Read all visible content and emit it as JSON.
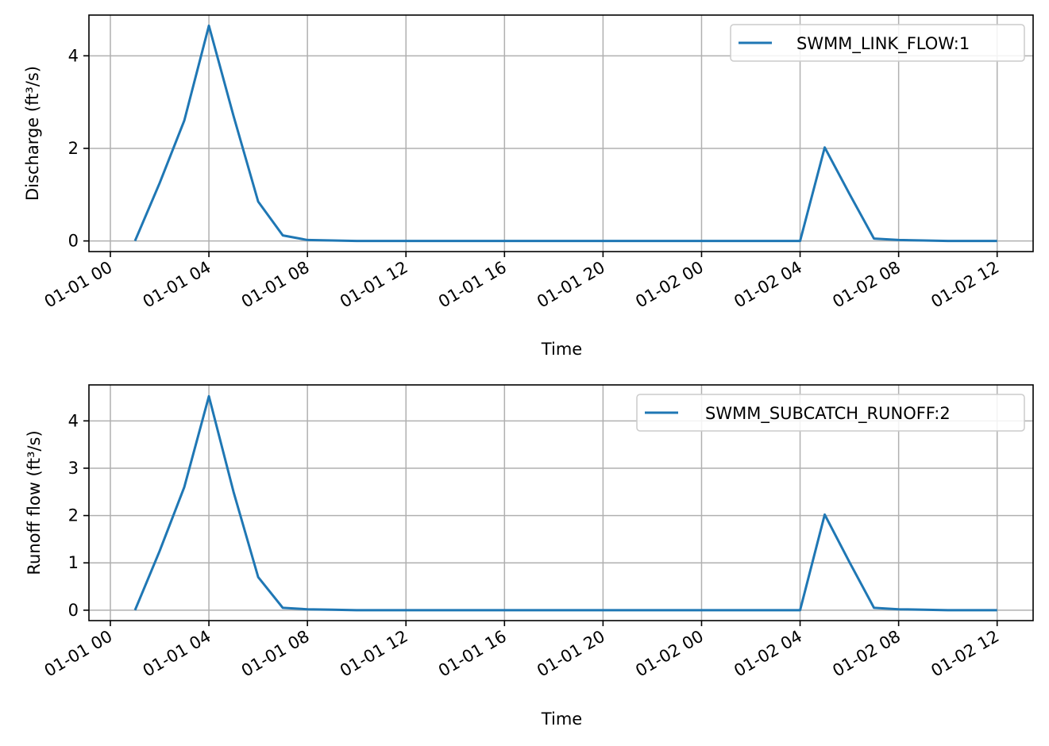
{
  "colors": {
    "series": "#1f77b4",
    "grid": "#b0b0b0",
    "axes": "#000000",
    "legend_border": "#cccccc",
    "background": "#ffffff"
  },
  "chart_data": [
    {
      "type": "line",
      "xlabel": "Time",
      "ylabel": "Discharge (ft³/s)",
      "x_axis": {
        "range_hours": [
          -0.87,
          37.46
        ],
        "ticks": [
          "01-01 00",
          "01-01 04",
          "01-01 08",
          "01-01 12",
          "01-01 16",
          "01-01 20",
          "01-02 00",
          "01-02 04",
          "01-02 08",
          "01-02 12"
        ],
        "tick_hours": [
          0,
          4,
          8,
          12,
          16,
          20,
          24,
          28,
          32,
          36
        ]
      },
      "ylim": [
        -0.23,
        4.88
      ],
      "yticks": [
        0,
        2,
        4
      ],
      "grid": true,
      "legend_position": "upper right",
      "x": [
        "01-01 01",
        "01-01 02",
        "01-01 03",
        "01-01 04",
        "01-01 05",
        "01-01 06",
        "01-01 07",
        "01-01 08",
        "01-01 09",
        "01-01 10",
        "01-01 11",
        "01-01 12",
        "01-01 13",
        "01-01 14",
        "01-01 15",
        "01-01 16",
        "01-01 17",
        "01-01 18",
        "01-01 19",
        "01-01 20",
        "01-01 21",
        "01-01 22",
        "01-01 23",
        "01-02 00",
        "01-02 01",
        "01-02 02",
        "01-02 03",
        "01-02 04",
        "01-02 05",
        "01-02 06",
        "01-02 07",
        "01-02 08",
        "01-02 09",
        "01-02 10",
        "01-02 11",
        "01-02 12"
      ],
      "series": [
        {
          "name": "SWMM_LINK_FLOW:1",
          "values": [
            0,
            1.25,
            2.6,
            4.65,
            2.7,
            0.85,
            0.12,
            0.02,
            0.01,
            0,
            0,
            0,
            0,
            0,
            0,
            0,
            0,
            0,
            0,
            0,
            0,
            0,
            0,
            0,
            0,
            0,
            0,
            0,
            2.02,
            1.02,
            0.05,
            0.02,
            0.01,
            0,
            0,
            0
          ]
        }
      ]
    },
    {
      "type": "line",
      "xlabel": "Time",
      "ylabel": "Runoff flow (ft³/s)",
      "x_axis": {
        "range_hours": [
          -0.87,
          37.46
        ],
        "ticks": [
          "01-01 00",
          "01-01 04",
          "01-01 08",
          "01-01 12",
          "01-01 16",
          "01-01 20",
          "01-02 00",
          "01-02 04",
          "01-02 08",
          "01-02 12"
        ],
        "tick_hours": [
          0,
          4,
          8,
          12,
          16,
          20,
          24,
          28,
          32,
          36
        ]
      },
      "ylim": [
        -0.22,
        4.76
      ],
      "yticks": [
        0,
        1,
        2,
        3,
        4
      ],
      "grid": true,
      "legend_position": "upper right",
      "x": [
        "01-01 01",
        "01-01 02",
        "01-01 03",
        "01-01 04",
        "01-01 05",
        "01-01 06",
        "01-01 07",
        "01-01 08",
        "01-01 09",
        "01-01 10",
        "01-01 11",
        "01-01 12",
        "01-01 13",
        "01-01 14",
        "01-01 15",
        "01-01 16",
        "01-01 17",
        "01-01 18",
        "01-01 19",
        "01-01 20",
        "01-01 21",
        "01-01 22",
        "01-01 23",
        "01-02 00",
        "01-02 01",
        "01-02 02",
        "01-02 03",
        "01-02 04",
        "01-02 05",
        "01-02 06",
        "01-02 07",
        "01-02 08",
        "01-02 09",
        "01-02 10",
        "01-02 11",
        "01-02 12"
      ],
      "series": [
        {
          "name": "SWMM_SUBCATCH_RUNOFF:2",
          "values": [
            0,
            1.25,
            2.6,
            4.52,
            2.5,
            0.7,
            0.05,
            0.02,
            0.01,
            0,
            0,
            0,
            0,
            0,
            0,
            0,
            0,
            0,
            0,
            0,
            0,
            0,
            0,
            0,
            0,
            0,
            0,
            0,
            2.02,
            1.02,
            0.05,
            0.02,
            0.01,
            0,
            0,
            0
          ]
        }
      ]
    }
  ]
}
